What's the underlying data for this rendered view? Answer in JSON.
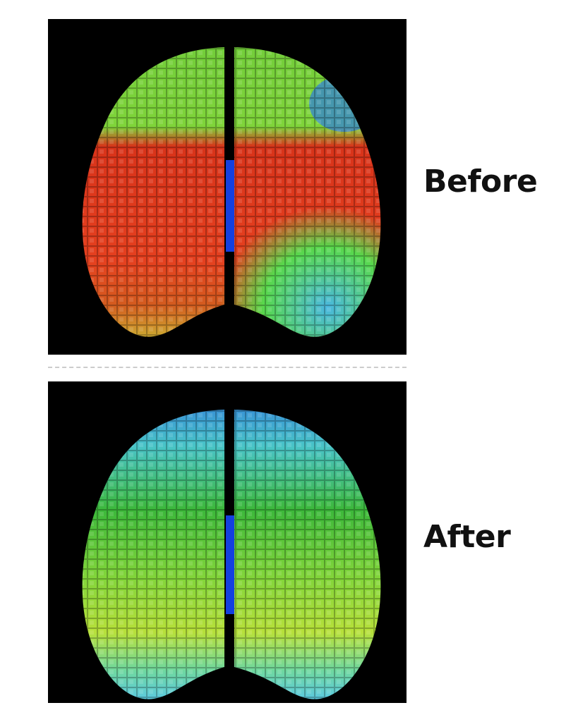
{
  "panels": [
    {
      "label": "Before"
    },
    {
      "label": "After"
    }
  ]
}
